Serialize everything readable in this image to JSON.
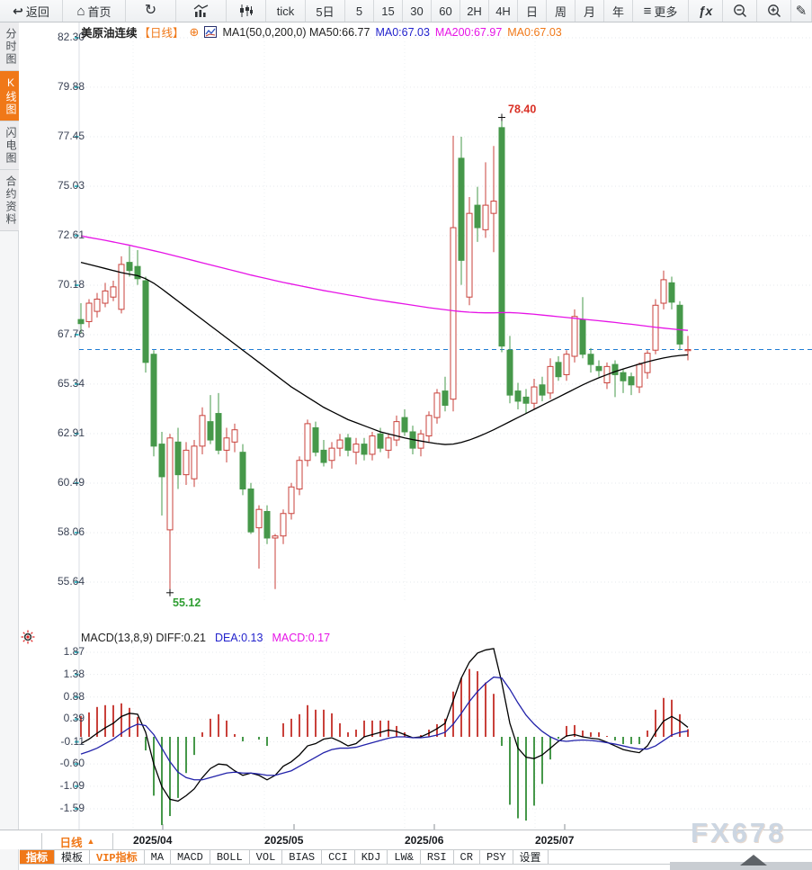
{
  "toolbar": {
    "items": [
      {
        "name": "back",
        "icon": "back",
        "label": "返回"
      },
      {
        "name": "home",
        "icon": "home",
        "label": "首页"
      },
      {
        "name": "refresh",
        "icon": "refresh",
        "label": ""
      },
      {
        "name": "bar-chart-view",
        "icon": "bar-chart",
        "label": ""
      },
      {
        "name": "kline-view",
        "icon": "kline",
        "label": ""
      },
      {
        "name": "tick",
        "label": "tick"
      },
      {
        "name": "5-day",
        "label": "5日"
      },
      {
        "name": "5-min",
        "label": "5"
      },
      {
        "name": "15-min",
        "label": "15"
      },
      {
        "name": "30-min",
        "label": "30"
      },
      {
        "name": "60-min",
        "label": "60"
      },
      {
        "name": "2-hour",
        "label": "2H"
      },
      {
        "name": "4-hour",
        "label": "4H"
      },
      {
        "name": "daily",
        "label": "日"
      },
      {
        "name": "weekly",
        "label": "周"
      },
      {
        "name": "monthly",
        "label": "月"
      },
      {
        "name": "yearly",
        "label": "年"
      },
      {
        "name": "more",
        "icon": "menu",
        "label": "更多"
      },
      {
        "name": "formula",
        "icon": "fx",
        "label": ""
      },
      {
        "name": "zoom-out",
        "icon": "zoom-out",
        "label": ""
      },
      {
        "name": "zoom-in",
        "icon": "zoom-in",
        "label": ""
      },
      {
        "name": "draw",
        "icon": "pencil",
        "label": ""
      }
    ]
  },
  "sidebar": {
    "items": [
      {
        "name": "time-chart",
        "label": "分时图",
        "active": false
      },
      {
        "name": "kline-chart",
        "label": "K线图",
        "active": true
      },
      {
        "name": "lightning-chart",
        "label": "闪电图",
        "active": false
      },
      {
        "name": "contract-info",
        "label": "合约资料",
        "active": false
      }
    ]
  },
  "legend": {
    "symbol": "美原油连续",
    "period": "【日线】",
    "ma_settings": "MA1(50,0,200,0) MA50:66.77",
    "ma0_blue": "MA0:67.03",
    "ma200": "MA200:67.97",
    "ma0_orange": "MA0:67.03"
  },
  "macd_header": {
    "title": "MACD(13,8,9) DIFF:0.21",
    "dea": "DEA:0.13",
    "macd": "MACD:0.17"
  },
  "price_axis": [
    "82.30",
    "79.88",
    "77.45",
    "75.03",
    "72.61",
    "70.18",
    "67.76",
    "65.34",
    "62.91",
    "60.49",
    "58.06",
    "55.64"
  ],
  "macd_axis": [
    "1.87",
    "1.38",
    "0.88",
    "0.39",
    "-0.11",
    "-0.60",
    "-1.09",
    "-1.59"
  ],
  "annotations": {
    "high": "78.40",
    "low": "55.12"
  },
  "x_axis": {
    "period_label": "日线",
    "period_arrow": "▲",
    "labels": [
      "2025/04",
      "2025/05",
      "2025/06",
      "2025/07"
    ]
  },
  "tabs": [
    {
      "name": "indicators",
      "label": "指标",
      "selected": true,
      "vip": false
    },
    {
      "name": "templates",
      "label": "模板",
      "selected": false,
      "vip": false
    },
    {
      "name": "vip-indicators",
      "label": "VIP指标",
      "selected": false,
      "vip": true
    },
    {
      "name": "ma",
      "label": "MA",
      "selected": false,
      "vip": false
    },
    {
      "name": "macd",
      "label": "MACD",
      "selected": false,
      "vip": false
    },
    {
      "name": "boll",
      "label": "BOLL",
      "selected": false,
      "vip": false
    },
    {
      "name": "vol",
      "label": "VOL",
      "selected": false,
      "vip": false
    },
    {
      "name": "bias",
      "label": "BIAS",
      "selected": false,
      "vip": false
    },
    {
      "name": "cci",
      "label": "CCI",
      "selected": false,
      "vip": false
    },
    {
      "name": "kdj",
      "label": "KDJ",
      "selected": false,
      "vip": false
    },
    {
      "name": "lwr",
      "label": "LW&",
      "selected": false,
      "vip": false
    },
    {
      "name": "rsi",
      "label": "RSI",
      "selected": false,
      "vip": false
    },
    {
      "name": "cr",
      "label": "CR",
      "selected": false,
      "vip": false
    },
    {
      "name": "psy",
      "label": "PSY",
      "selected": false,
      "vip": false
    },
    {
      "name": "settings",
      "label": "设置",
      "selected": false,
      "vip": false
    }
  ],
  "watermark": {
    "text": "FX678"
  },
  "colors": {
    "up": "#c9413b",
    "down": "#46984a",
    "ma50": "#000000",
    "ma200": "#e613e6",
    "diff": "#000000",
    "dea": "#2222aa",
    "price_line": "#1f7cd4",
    "accent": "#f07818",
    "annotation_high": "#d93025",
    "annotation_low": "#2f9e32",
    "grid": "#e6e9ec",
    "axis_tick": "#3ec1cd"
  },
  "chart_data": {
    "type": "candlestick",
    "title": "美原油连续 日线 (WTI crude continuous, daily)",
    "x_labels": [
      "2025/04",
      "2025/05",
      "2025/06",
      "2025/07"
    ],
    "price_axis_ticks": [
      82.3,
      79.88,
      77.45,
      75.03,
      72.61,
      70.18,
      67.76,
      65.34,
      62.91,
      60.49,
      58.06,
      55.64
    ],
    "ylim": [
      55.64,
      82.3
    ],
    "current_price": 67.03,
    "high_annotation": {
      "value": 78.4,
      "index": 52
    },
    "low_annotation": {
      "value": 55.12,
      "index": 11
    },
    "candles": [
      [
        68.5,
        69.3,
        67.8,
        68.3
      ],
      [
        68.4,
        69.5,
        68.1,
        69.3
      ],
      [
        68.9,
        69.8,
        68.6,
        69.5
      ],
      [
        69.3,
        70.3,
        69.1,
        69.9
      ],
      [
        69.6,
        70.4,
        69.4,
        70.1
      ],
      [
        69.0,
        71.6,
        68.8,
        71.2
      ],
      [
        71.3,
        72.1,
        70.6,
        70.9
      ],
      [
        71.1,
        71.9,
        70.2,
        70.5
      ],
      [
        70.4,
        70.6,
        65.9,
        66.4
      ],
      [
        66.8,
        67.0,
        61.8,
        62.3
      ],
      [
        62.4,
        63.0,
        58.9,
        60.8
      ],
      [
        58.2,
        62.9,
        55.12,
        62.7
      ],
      [
        62.5,
        63.2,
        60.2,
        60.9
      ],
      [
        60.9,
        62.5,
        60.4,
        62.1
      ],
      [
        60.7,
        62.6,
        60.3,
        62.3
      ],
      [
        62.3,
        64.2,
        61.9,
        63.8
      ],
      [
        63.5,
        64.8,
        62.4,
        62.6
      ],
      [
        63.9,
        64.9,
        61.9,
        62.1
      ],
      [
        62.1,
        63.2,
        61.5,
        62.7
      ],
      [
        62.5,
        63.4,
        62.0,
        63.1
      ],
      [
        62.0,
        62.4,
        59.9,
        60.2
      ],
      [
        60.2,
        60.5,
        58.0,
        58.1
      ],
      [
        58.3,
        59.4,
        56.3,
        59.2
      ],
      [
        59.1,
        59.4,
        57.5,
        57.8
      ],
      [
        57.8,
        58.0,
        55.3,
        57.9
      ],
      [
        57.9,
        59.2,
        57.5,
        59.0
      ],
      [
        59.0,
        60.5,
        58.7,
        60.3
      ],
      [
        60.2,
        61.8,
        59.9,
        61.6
      ],
      [
        61.6,
        63.6,
        61.3,
        63.4
      ],
      [
        63.2,
        63.5,
        61.8,
        62.0
      ],
      [
        62.1,
        62.6,
        61.3,
        61.5
      ],
      [
        61.6,
        62.5,
        61.2,
        62.2
      ],
      [
        62.2,
        62.9,
        61.8,
        62.6
      ],
      [
        62.7,
        62.9,
        61.8,
        62.1
      ],
      [
        62.0,
        62.7,
        61.4,
        62.4
      ],
      [
        62.4,
        62.7,
        61.6,
        61.9
      ],
      [
        61.9,
        63.0,
        61.6,
        62.8
      ],
      [
        62.9,
        63.2,
        62.0,
        62.2
      ],
      [
        62.1,
        62.9,
        61.7,
        62.7
      ],
      [
        62.6,
        63.8,
        62.3,
        63.5
      ],
      [
        63.7,
        64.1,
        62.8,
        63.0
      ],
      [
        63.0,
        63.3,
        61.9,
        62.2
      ],
      [
        62.2,
        63.1,
        61.8,
        62.9
      ],
      [
        62.8,
        64.0,
        62.5,
        63.8
      ],
      [
        63.7,
        65.1,
        63.4,
        64.9
      ],
      [
        65.0,
        65.7,
        64.0,
        64.3
      ],
      [
        64.6,
        77.5,
        64.0,
        73.0
      ],
      [
        76.4,
        77.45,
        70.2,
        71.4
      ],
      [
        69.6,
        74.5,
        69.2,
        73.7
      ],
      [
        74.1,
        75.0,
        72.3,
        73.0
      ],
      [
        72.9,
        76.2,
        72.5,
        74.1
      ],
      [
        73.7,
        77.0,
        71.8,
        74.3
      ],
      [
        77.9,
        78.4,
        66.9,
        67.2
      ],
      [
        67.0,
        67.7,
        64.4,
        64.8
      ],
      [
        65.0,
        65.4,
        64.1,
        64.5
      ],
      [
        64.7,
        65.1,
        63.9,
        64.4
      ],
      [
        64.4,
        65.6,
        64.1,
        65.2
      ],
      [
        65.3,
        65.7,
        64.5,
        64.8
      ],
      [
        64.9,
        66.6,
        64.6,
        66.2
      ],
      [
        66.4,
        66.7,
        65.5,
        65.7
      ],
      [
        65.8,
        67.0,
        65.5,
        66.8
      ],
      [
        66.7,
        69.0,
        66.4,
        68.65
      ],
      [
        68.5,
        69.6,
        66.6,
        66.8
      ],
      [
        66.8,
        67.1,
        65.9,
        66.3
      ],
      [
        66.2,
        66.5,
        65.7,
        66.0
      ],
      [
        65.4,
        66.4,
        65.1,
        66.2
      ],
      [
        66.3,
        66.5,
        64.7,
        65.8
      ],
      [
        65.9,
        66.1,
        64.9,
        65.5
      ],
      [
        65.7,
        65.9,
        64.8,
        65.3
      ],
      [
        65.2,
        66.4,
        64.9,
        66.3
      ],
      [
        65.9,
        67.0,
        65.6,
        66.85
      ],
      [
        67.0,
        69.5,
        66.8,
        69.2
      ],
      [
        69.3,
        70.9,
        69.0,
        70.45
      ],
      [
        70.3,
        70.6,
        69.0,
        69.35
      ],
      [
        69.2,
        69.4,
        67.0,
        67.3
      ],
      [
        67.0,
        67.7,
        66.5,
        67.03
      ]
    ],
    "series": [
      {
        "name": "MA50",
        "color": "#000000",
        "values": [
          71.3,
          71.2,
          71.1,
          71.0,
          70.9,
          70.8,
          70.72,
          70.65,
          70.5,
          70.28,
          70.0,
          69.7,
          69.4,
          69.1,
          68.8,
          68.5,
          68.2,
          67.9,
          67.6,
          67.3,
          67.0,
          66.7,
          66.4,
          66.1,
          65.8,
          65.5,
          65.2,
          64.95,
          64.7,
          64.45,
          64.2,
          64.0,
          63.8,
          63.6,
          63.45,
          63.3,
          63.15,
          63.0,
          62.9,
          62.8,
          62.7,
          62.62,
          62.55,
          62.48,
          62.42,
          62.38,
          62.4,
          62.48,
          62.6,
          62.75,
          62.92,
          63.1,
          63.3,
          63.5,
          63.7,
          63.9,
          64.1,
          64.3,
          64.5,
          64.7,
          64.9,
          65.1,
          65.3,
          65.48,
          65.65,
          65.8,
          65.95,
          66.08,
          66.2,
          66.32,
          66.43,
          66.53,
          66.62,
          66.69,
          66.74,
          66.77
        ]
      },
      {
        "name": "MA200",
        "color": "#e613e6",
        "values": [
          72.6,
          72.52,
          72.45,
          72.38,
          72.3,
          72.22,
          72.14,
          72.05,
          71.96,
          71.87,
          71.78,
          71.68,
          71.58,
          71.48,
          71.38,
          71.28,
          71.18,
          71.08,
          70.98,
          70.88,
          70.78,
          70.68,
          70.59,
          70.5,
          70.41,
          70.32,
          70.24,
          70.16,
          70.08,
          70.0,
          69.92,
          69.85,
          69.78,
          69.71,
          69.64,
          69.57,
          69.5,
          69.44,
          69.38,
          69.32,
          69.26,
          69.2,
          69.14,
          69.08,
          69.03,
          68.98,
          68.93,
          68.89,
          68.86,
          68.84,
          68.83,
          68.83,
          68.84,
          68.84,
          68.82,
          68.79,
          68.76,
          68.72,
          68.68,
          68.64,
          68.6,
          68.56,
          68.52,
          68.48,
          68.44,
          68.4,
          68.36,
          68.31,
          68.27,
          68.22,
          68.17,
          68.12,
          68.08,
          68.04,
          68.0,
          67.97
        ]
      }
    ],
    "macd": {
      "params": "(13,8,9)",
      "diff_last": 0.21,
      "dea_last": 0.13,
      "macd_last": 0.17,
      "axis_ticks": [
        1.87,
        1.38,
        0.88,
        0.39,
        -0.11,
        -0.6,
        -1.09,
        -1.59
      ],
      "diff": [
        -0.15,
        -0.05,
        0.08,
        0.2,
        0.3,
        0.45,
        0.52,
        0.5,
        0.1,
        -0.6,
        -1.1,
        -1.38,
        -1.42,
        -1.3,
        -1.15,
        -0.9,
        -0.7,
        -0.6,
        -0.62,
        -0.75,
        -0.85,
        -0.8,
        -0.85,
        -0.95,
        -0.85,
        -0.65,
        -0.55,
        -0.4,
        -0.2,
        -0.15,
        -0.05,
        -0.02,
        -0.1,
        -0.2,
        -0.15,
        0.0,
        0.05,
        0.1,
        0.15,
        0.12,
        0.05,
        -0.02,
        0.0,
        0.08,
        0.18,
        0.3,
        0.8,
        1.3,
        1.65,
        1.85,
        1.92,
        1.95,
        1.2,
        0.3,
        -0.25,
        -0.45,
        -0.48,
        -0.4,
        -0.25,
        -0.1,
        0.02,
        0.05,
        0.0,
        -0.03,
        -0.05,
        -0.12,
        -0.2,
        -0.28,
        -0.32,
        -0.35,
        -0.2,
        0.1,
        0.35,
        0.45,
        0.35,
        0.21
      ],
      "dea": [
        -0.38,
        -0.32,
        -0.25,
        -0.15,
        -0.05,
        0.08,
        0.2,
        0.28,
        0.25,
        0.05,
        -0.25,
        -0.55,
        -0.78,
        -0.9,
        -0.95,
        -0.95,
        -0.9,
        -0.85,
        -0.8,
        -0.78,
        -0.8,
        -0.8,
        -0.82,
        -0.85,
        -0.85,
        -0.8,
        -0.75,
        -0.65,
        -0.55,
        -0.45,
        -0.35,
        -0.28,
        -0.25,
        -0.25,
        -0.23,
        -0.18,
        -0.13,
        -0.08,
        -0.03,
        0.0,
        0.0,
        -0.02,
        -0.02,
        0.0,
        0.04,
        0.1,
        0.28,
        0.52,
        0.78,
        1.0,
        1.18,
        1.32,
        1.3,
        1.05,
        0.75,
        0.48,
        0.28,
        0.12,
        0.0,
        -0.08,
        -0.1,
        -0.08,
        -0.07,
        -0.08,
        -0.1,
        -0.13,
        -0.16,
        -0.2,
        -0.24,
        -0.27,
        -0.27,
        -0.2,
        -0.08,
        0.04,
        0.1,
        0.13
      ],
      "hist": [
        0.46,
        0.54,
        0.66,
        0.7,
        0.7,
        0.74,
        0.64,
        0.44,
        -0.3,
        -1.3,
        -1.95,
        -1.75,
        -1.35,
        -0.8,
        -0.4,
        0.1,
        0.4,
        0.5,
        0.36,
        0.06,
        -0.1,
        0.0,
        -0.06,
        -0.2,
        0.0,
        0.3,
        0.4,
        0.5,
        0.7,
        0.6,
        0.6,
        0.52,
        0.3,
        0.1,
        0.16,
        0.36,
        0.36,
        0.36,
        0.36,
        0.24,
        0.1,
        0.0,
        0.04,
        0.16,
        0.28,
        0.4,
        1.0,
        1.3,
        1.5,
        1.45,
        1.2,
        0.95,
        -0.2,
        -1.5,
        -1.8,
        -1.85,
        -1.52,
        -1.04,
        -0.5,
        -0.04,
        0.24,
        0.26,
        0.14,
        0.1,
        0.1,
        0.02,
        -0.08,
        -0.16,
        -0.16,
        -0.16,
        0.14,
        0.6,
        0.86,
        0.82,
        0.5,
        0.17
      ]
    }
  }
}
